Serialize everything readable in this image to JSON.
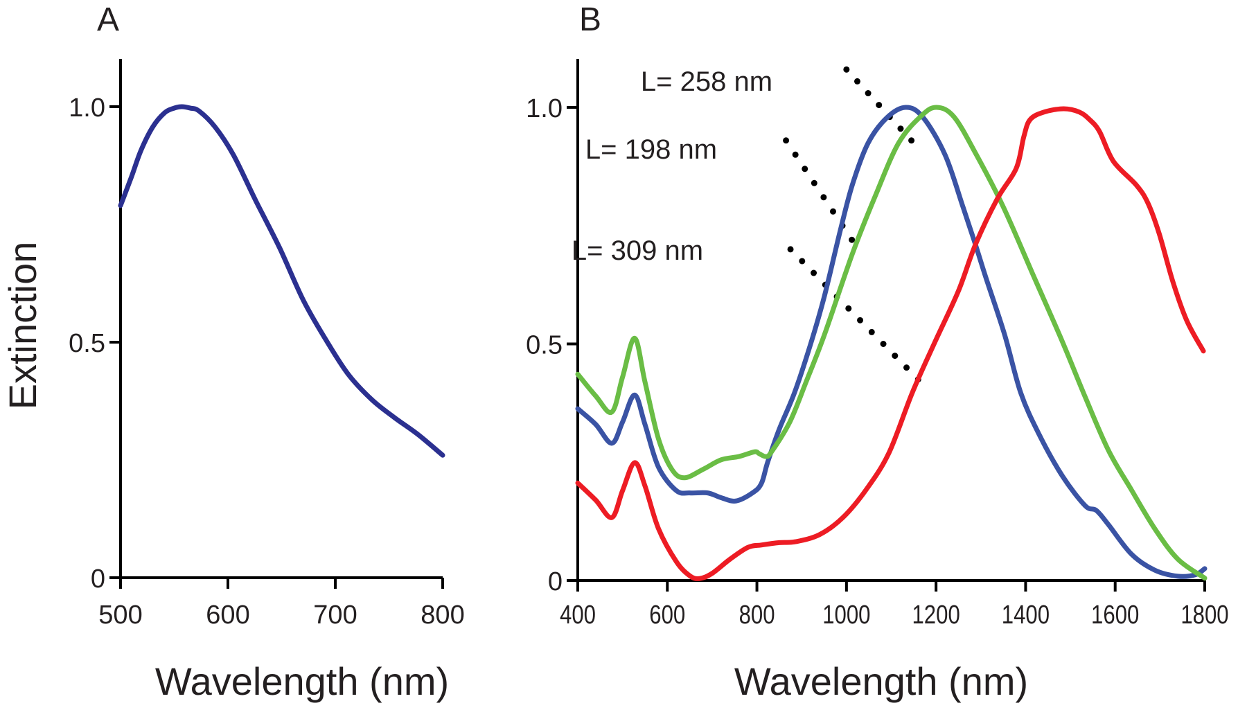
{
  "chart_data": [
    {
      "panel": "A",
      "type": "line",
      "title": "",
      "xlabel": "Wavelength (nm)",
      "ylabel": "Extinction",
      "xlim": [
        500,
        800
      ],
      "ylim": [
        0,
        1.1
      ],
      "xticks": [
        500,
        600,
        700,
        800
      ],
      "xtick_labels": [
        "500",
        "600",
        "700",
        "800"
      ],
      "yticks": [
        0,
        0.5,
        1.0
      ],
      "ytick_labels": [
        "0",
        "0.5",
        "1.0"
      ],
      "grid": false,
      "series": [
        {
          "name": "spectrum",
          "color": "#2b3090",
          "x": [
            500,
            510,
            519,
            530,
            541,
            550,
            557,
            565,
            573,
            588,
            605,
            626,
            648,
            670,
            691,
            712,
            734,
            755,
            777,
            800
          ],
          "y": [
            0.79,
            0.85,
            0.907,
            0.957,
            0.987,
            0.997,
            1.0,
            0.997,
            0.991,
            0.957,
            0.898,
            0.8,
            0.701,
            0.59,
            0.506,
            0.432,
            0.378,
            0.34,
            0.304,
            0.26
          ]
        }
      ]
    },
    {
      "panel": "B",
      "type": "line",
      "title": "",
      "xlabel": "Wavelength (nm)",
      "ylabel": "Extinction",
      "xlim": [
        400,
        1800
      ],
      "ylim": [
        0,
        1.1
      ],
      "xticks": [
        400,
        600,
        800,
        1000,
        1200,
        1400,
        1600,
        1800
      ],
      "xtick_labels": [
        "400",
        "600",
        "800",
        "1000",
        "1200",
        "1400",
        "1600",
        "1800"
      ],
      "yticks": [
        0,
        0.5,
        1.0
      ],
      "ytick_labels": [
        "0",
        "0.5",
        "1.0"
      ],
      "grid": false,
      "series": [
        {
          "name": "L= 198 nm",
          "color": "#3a53a4",
          "x": [
            400,
            440,
            476,
            500,
            527,
            550,
            580,
            620,
            650,
            690,
            720,
            753,
            790,
            810,
            824,
            850,
            884,
            920,
            951,
            986,
            1013,
            1048,
            1090,
            1132,
            1170,
            1220,
            1260,
            1288,
            1311,
            1353,
            1389,
            1430,
            1482,
            1533,
            1558,
            1585,
            1636,
            1688,
            1740,
            1779,
            1800
          ],
          "y": [
            0.363,
            0.33,
            0.29,
            0.335,
            0.392,
            0.33,
            0.24,
            0.19,
            0.185,
            0.185,
            0.175,
            0.168,
            0.185,
            0.205,
            0.25,
            0.32,
            0.397,
            0.5,
            0.602,
            0.739,
            0.836,
            0.924,
            0.978,
            1.0,
            0.98,
            0.9,
            0.79,
            0.71,
            0.641,
            0.52,
            0.397,
            0.309,
            0.221,
            0.158,
            0.148,
            0.118,
            0.056,
            0.022,
            0.009,
            0.012,
            0.025
          ]
        },
        {
          "name": "L= 258 nm",
          "color": "#6abd45",
          "x": [
            400,
            440,
            476,
            500,
            527,
            550,
            580,
            610,
            638,
            680,
            720,
            760,
            795,
            805,
            820,
            832,
            873,
            910,
            951,
            1013,
            1064,
            1116,
            1167,
            1201,
            1240,
            1290,
            1350,
            1419,
            1482,
            1533,
            1585,
            1636,
            1688,
            1740,
            1800
          ],
          "y": [
            0.436,
            0.39,
            0.356,
            0.43,
            0.512,
            0.42,
            0.3,
            0.235,
            0.217,
            0.235,
            0.255,
            0.262,
            0.272,
            0.268,
            0.262,
            0.271,
            0.334,
            0.42,
            0.52,
            0.69,
            0.812,
            0.924,
            0.982,
            1.0,
            0.98,
            0.9,
            0.79,
            0.641,
            0.505,
            0.388,
            0.275,
            0.192,
            0.11,
            0.045,
            0.005
          ]
        },
        {
          "name": "L= 309 nm",
          "color": "#ed1c24",
          "x": [
            400,
            440,
            476,
            500,
            527,
            550,
            580,
            620,
            650,
            672,
            700,
            740,
            780,
            810,
            850,
            887,
            940,
            992,
            1044,
            1095,
            1147,
            1198,
            1250,
            1288,
            1337,
            1379,
            1396,
            1410,
            1441,
            1485,
            1520,
            1543,
            1565,
            1596,
            1647,
            1673,
            1698,
            1729,
            1760,
            1797
          ],
          "y": [
            0.206,
            0.17,
            0.133,
            0.19,
            0.249,
            0.2,
            0.11,
            0.04,
            0.01,
            0.004,
            0.015,
            0.045,
            0.07,
            0.075,
            0.08,
            0.082,
            0.097,
            0.133,
            0.192,
            0.27,
            0.397,
            0.505,
            0.612,
            0.71,
            0.807,
            0.871,
            0.938,
            0.974,
            0.99,
            0.997,
            0.99,
            0.974,
            0.949,
            0.886,
            0.836,
            0.798,
            0.734,
            0.631,
            0.549,
            0.485
          ]
        }
      ],
      "annotations": [
        {
          "text": "L= 258 nm",
          "target_series": "L= 258 nm",
          "leader_from": [
            1000,
            1.08
          ],
          "leader_to": [
            1145,
            0.93
          ],
          "leader_style": "dotted"
        },
        {
          "text": "L= 198 nm",
          "target_series": "L= 198 nm",
          "leader_from": [
            865,
            0.93
          ],
          "leader_to": [
            1012,
            0.72
          ],
          "leader_style": "dotted"
        },
        {
          "text": "L= 309 nm",
          "target_series": "L= 309 nm",
          "leader_from": [
            875,
            0.7
          ],
          "leader_to": [
            1160,
            0.425
          ],
          "leader_style": "dotted"
        }
      ]
    }
  ],
  "panels": {
    "a": {
      "label": "A",
      "ylabel": "Extinction",
      "xlabel": "Wavelength (nm)"
    },
    "b": {
      "label": "B",
      "xlabel": "Wavelength (nm)"
    }
  }
}
